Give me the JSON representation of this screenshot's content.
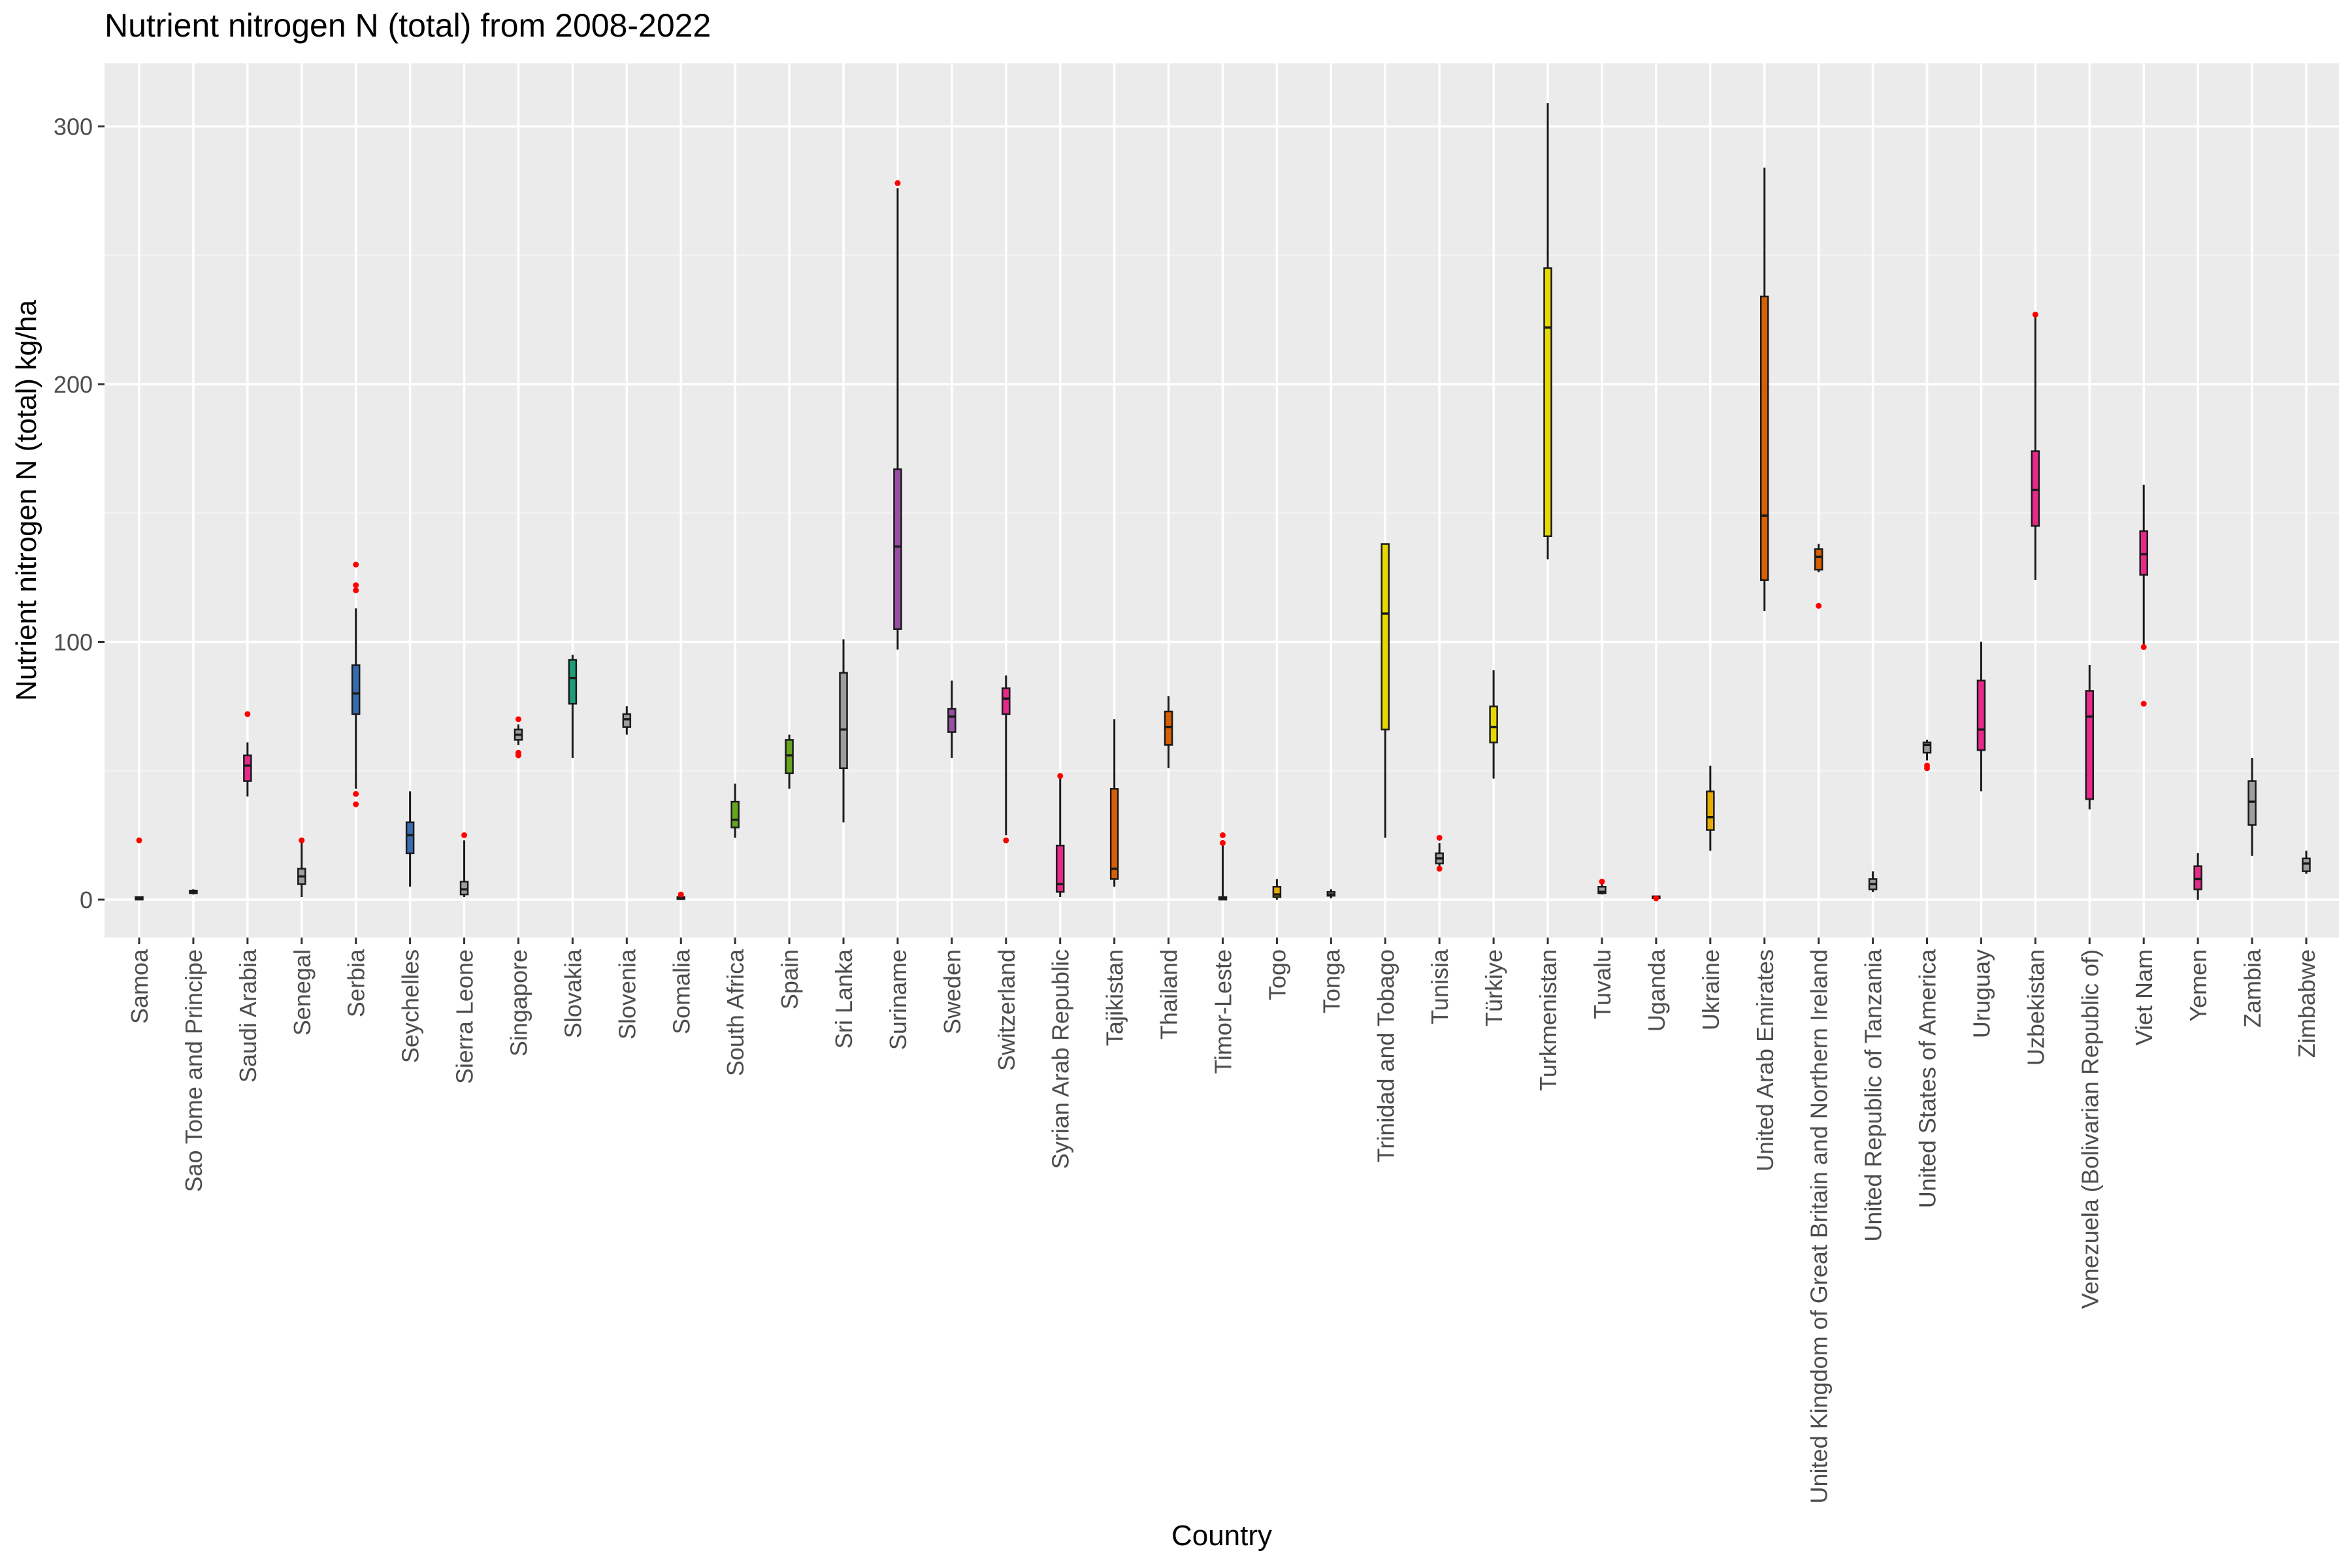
{
  "chart_data": {
    "type": "boxplot",
    "title": "Nutrient nitrogen N (total) from 2008-2022",
    "xlabel": "Country",
    "ylabel": "Nutrient nitrogen N (total) kg/ha",
    "ylim": [
      -14,
      325
    ],
    "yticks": [
      0,
      100,
      200,
      300
    ],
    "grid": true,
    "legend": "none",
    "outlier_color": "#ff0000",
    "series": [
      {
        "name": "Samoa",
        "stats": [
          0,
          0,
          0.5,
          1,
          1
        ],
        "outliers": [
          23
        ],
        "color": "#9e9e9e"
      },
      {
        "name": "Sao Tome and Principe",
        "stats": [
          2,
          2.5,
          3,
          3.5,
          4
        ],
        "outliers": [],
        "color": "#9e9e9e"
      },
      {
        "name": "Saudi Arabia",
        "stats": [
          40,
          46,
          52,
          56,
          61
        ],
        "outliers": [
          72
        ],
        "color": "#e7298a"
      },
      {
        "name": "Senegal",
        "stats": [
          1,
          6,
          9,
          12,
          22
        ],
        "outliers": [
          23
        ],
        "color": "#9e9e9e"
      },
      {
        "name": "Serbia",
        "stats": [
          43,
          72,
          80,
          91,
          113
        ],
        "outliers": [
          37,
          41,
          120,
          122,
          130
        ],
        "color": "#386cb0"
      },
      {
        "name": "Seychelles",
        "stats": [
          5,
          18,
          25,
          30,
          42
        ],
        "outliers": [],
        "color": "#386cb0"
      },
      {
        "name": "Sierra Leone",
        "stats": [
          1,
          2,
          4,
          7,
          23
        ],
        "outliers": [
          25
        ],
        "color": "#9e9e9e"
      },
      {
        "name": "Singapore",
        "stats": [
          60,
          62,
          64,
          66,
          68
        ],
        "outliers": [
          56,
          57,
          70
        ],
        "color": "#9e9e9e"
      },
      {
        "name": "Slovakia",
        "stats": [
          55,
          76,
          86,
          93,
          95
        ],
        "outliers": [],
        "color": "#1b9e77"
      },
      {
        "name": "Slovenia",
        "stats": [
          64,
          67,
          70,
          72,
          75
        ],
        "outliers": [],
        "color": "#9e9e9e"
      },
      {
        "name": "Somalia",
        "stats": [
          0,
          0.2,
          0.5,
          1,
          1.5
        ],
        "outliers": [
          2
        ],
        "color": "#9e9e9e"
      },
      {
        "name": "South Africa",
        "stats": [
          24,
          28,
          31,
          38,
          45
        ],
        "outliers": [],
        "color": "#66a61e"
      },
      {
        "name": "Spain",
        "stats": [
          43,
          49,
          56,
          62,
          64
        ],
        "outliers": [],
        "color": "#66a61e"
      },
      {
        "name": "Sri Lanka",
        "stats": [
          30,
          51,
          66,
          88,
          101
        ],
        "outliers": [],
        "color": "#9e9e9e"
      },
      {
        "name": "Suriname",
        "stats": [
          97,
          105,
          137,
          167,
          276
        ],
        "outliers": [
          278
        ],
        "color": "#984ea3"
      },
      {
        "name": "Sweden",
        "stats": [
          55,
          65,
          71,
          74,
          85
        ],
        "outliers": [],
        "color": "#984ea3"
      },
      {
        "name": "Switzerland",
        "stats": [
          25,
          72,
          78,
          82,
          87
        ],
        "outliers": [
          23
        ],
        "color": "#e7298a"
      },
      {
        "name": "Syrian Arab Republic",
        "stats": [
          1,
          3,
          6,
          21,
          47
        ],
        "outliers": [
          48
        ],
        "color": "#e7298a"
      },
      {
        "name": "Tajikistan",
        "stats": [
          5,
          8,
          12,
          43,
          70
        ],
        "outliers": [],
        "color": "#d95f02"
      },
      {
        "name": "Thailand",
        "stats": [
          51,
          60,
          67,
          73,
          79
        ],
        "outliers": [],
        "color": "#d95f02"
      },
      {
        "name": "Timor-Leste",
        "stats": [
          0,
          0,
          0.5,
          1,
          22
        ],
        "outliers": [
          22,
          25
        ],
        "color": "#9e9e9e"
      },
      {
        "name": "Togo",
        "stats": [
          0,
          1,
          2,
          5,
          8
        ],
        "outliers": [],
        "color": "#e6ab02"
      },
      {
        "name": "Tonga",
        "stats": [
          0.5,
          1.5,
          2,
          3,
          4
        ],
        "outliers": [],
        "color": "#9e9e9e"
      },
      {
        "name": "Trinidad and Tobago",
        "stats": [
          24,
          66,
          111,
          138,
          138
        ],
        "outliers": [],
        "color": "#e6d800"
      },
      {
        "name": "Tunisia",
        "stats": [
          12,
          14,
          16,
          18,
          22
        ],
        "outliers": [
          12,
          24
        ],
        "color": "#9e9e9e"
      },
      {
        "name": "Türkiye",
        "stats": [
          47,
          61,
          67,
          75,
          89
        ],
        "outliers": [],
        "color": "#e6d800"
      },
      {
        "name": "Turkmenistan",
        "stats": [
          132,
          141,
          222,
          245,
          309
        ],
        "outliers": [],
        "color": "#e6d800"
      },
      {
        "name": "Tuvalu",
        "stats": [
          2,
          2.5,
          3,
          5,
          6
        ],
        "outliers": [
          7
        ],
        "color": "#9e9e9e"
      },
      {
        "name": "Uganda",
        "stats": [
          0.5,
          0.8,
          1,
          1.3,
          1.6
        ],
        "outliers": [
          0.5
        ],
        "color": "#9e9e9e"
      },
      {
        "name": "Ukraine",
        "stats": [
          19,
          27,
          32,
          42,
          52
        ],
        "outliers": [],
        "color": "#e6ab02"
      },
      {
        "name": "United Arab Emirates",
        "stats": [
          112,
          124,
          149,
          234,
          284
        ],
        "outliers": [],
        "color": "#d95f02"
      },
      {
        "name": "United Kingdom of Great Britain and Northern Ireland",
        "stats": [
          127,
          128,
          133,
          136,
          138
        ],
        "outliers": [
          114
        ],
        "color": "#d95f02"
      },
      {
        "name": "United Republic of Tanzania",
        "stats": [
          3,
          4,
          6,
          8,
          11
        ],
        "outliers": [],
        "color": "#9e9e9e"
      },
      {
        "name": "United States of America",
        "stats": [
          54,
          57,
          60,
          61,
          62
        ],
        "outliers": [
          51,
          52
        ],
        "color": "#9e9e9e"
      },
      {
        "name": "Uruguay",
        "stats": [
          42,
          58,
          66,
          85,
          100
        ],
        "outliers": [],
        "color": "#e7298a"
      },
      {
        "name": "Uzbekistan",
        "stats": [
          124,
          145,
          159,
          174,
          226
        ],
        "outliers": [
          227
        ],
        "color": "#e7298a"
      },
      {
        "name": "Venezuela (Bolivarian Republic of)",
        "stats": [
          35,
          39,
          71,
          81,
          91
        ],
        "outliers": [],
        "color": "#e7298a"
      },
      {
        "name": "Viet Nam",
        "stats": [
          97,
          126,
          134,
          143,
          161
        ],
        "outliers": [
          76,
          98
        ],
        "color": "#e7298a"
      },
      {
        "name": "Yemen",
        "stats": [
          0,
          4,
          8,
          13,
          18
        ],
        "outliers": [],
        "color": "#e7298a"
      },
      {
        "name": "Zambia",
        "stats": [
          17,
          29,
          38,
          46,
          55
        ],
        "outliers": [],
        "color": "#9e9e9e"
      },
      {
        "name": "Zimbabwe",
        "stats": [
          10,
          11,
          14,
          16,
          19
        ],
        "outliers": [],
        "color": "#9e9e9e"
      }
    ]
  }
}
